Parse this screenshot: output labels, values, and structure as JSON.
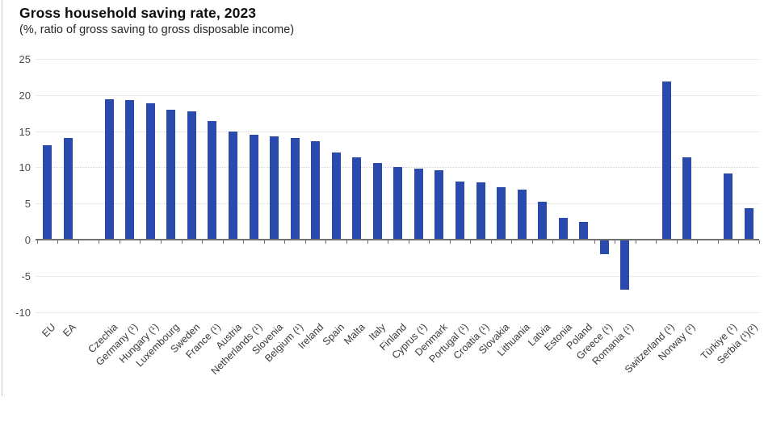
{
  "header": {
    "title": "Gross household saving rate, 2023",
    "subtitle": "(%, ratio of gross saving to gross disposable income)"
  },
  "chart_data": {
    "type": "bar",
    "title": "Gross household saving rate, 2023",
    "subtitle": "(%, ratio of gross saving to gross disposable income)",
    "xlabel": "",
    "ylabel": "",
    "unit": "% of gross disposable income",
    "ylim": [
      -10,
      25
    ],
    "yticks": [
      25,
      20,
      15,
      10,
      5,
      0,
      -5,
      -10
    ],
    "grid": "horizontal dotted gridlines",
    "legend": "none",
    "bar_color": "#2a4aae",
    "categories": [
      "EU",
      "EA",
      "Czechia",
      "Germany (¹)",
      "Hungary (¹)",
      "Luxembourg",
      "Sweden",
      "France (¹)",
      "Austria",
      "Netherlands (¹)",
      "Slovenia",
      "Belgium (¹)",
      "Ireland",
      "Spain",
      "Malta",
      "Italy",
      "Finland",
      "Cyprus (¹)",
      "Denmark",
      "Portugal (¹)",
      "Croatia (¹)",
      "Slovakia",
      "Lithuania",
      "Latvia",
      "Estonia",
      "Poland",
      "Greece (¹)",
      "Romania (¹)",
      "Switzerland (¹)",
      "Norway (²)",
      "Türkiye (¹)",
      "Serbia (¹)(²)"
    ],
    "values": [
      13.1,
      14.1,
      19.4,
      19.3,
      18.9,
      18.0,
      17.8,
      16.4,
      14.9,
      14.5,
      14.3,
      14.1,
      13.6,
      12.1,
      11.4,
      10.6,
      10.0,
      9.8,
      9.6,
      8.0,
      7.9,
      7.2,
      6.9,
      5.3,
      3.0,
      2.4,
      -1.9,
      -6.8,
      21.9,
      11.4,
      9.1,
      4.3
    ],
    "gap_after_indexes": [
      1,
      27,
      29
    ]
  },
  "colors": {
    "bar": "#2a4aae",
    "axis": "#707070",
    "gridline": "#d4d4d4",
    "ytick_label": "#4d4d4d",
    "xtick_label": "#3a3a3a",
    "title": "#0d0d0d",
    "subtitle": "#262626"
  }
}
